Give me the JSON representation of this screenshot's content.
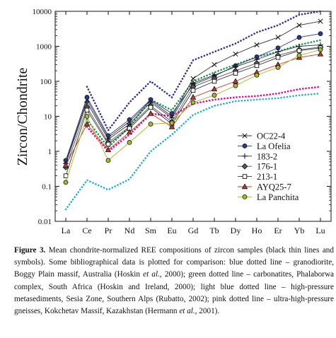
{
  "chart_data": {
    "type": "line",
    "title": "",
    "xlabel": "",
    "ylabel": "Zircon/Chondrite",
    "yscale": "log",
    "ylim": [
      0.01,
      10000
    ],
    "yticks": [
      0.01,
      0.1,
      1,
      10,
      100,
      1000,
      10000
    ],
    "ytick_labels": [
      "0.01",
      "0.1",
      "1",
      "10",
      "100",
      "1000",
      "10000"
    ],
    "categories": [
      "La",
      "Ce",
      "Pr",
      "Nd",
      "Sm",
      "Eu",
      "Gd",
      "Tb",
      "Dy",
      "Ho",
      "Er",
      "Yb",
      "Lu"
    ],
    "grid": false,
    "legend_position": "bottom-right",
    "series": [
      {
        "name": "OC22-4",
        "marker": "x-cross",
        "color": "#333333",
        "values": [
          0.5,
          30,
          2.5,
          7,
          28,
          10,
          120,
          300,
          600,
          1100,
          1800,
          4000,
          5200
        ]
      },
      {
        "name": "La Ofelia",
        "marker": "filled-circle",
        "color": "#2a3a8a",
        "values": [
          0.55,
          35,
          2.8,
          8,
          30,
          12,
          80,
          140,
          280,
          500,
          900,
          1800,
          2300
        ]
      },
      {
        "name": "183-2",
        "marker": "plus",
        "color": "#333333",
        "values": [
          0.45,
          25,
          2.2,
          6,
          25,
          9,
          90,
          150,
          260,
          420,
          700,
          1000,
          1100
        ]
      },
      {
        "name": "176-1",
        "marker": "filled-diamond",
        "color": "#555555",
        "values": [
          0.35,
          18,
          1.8,
          5,
          20,
          7,
          70,
          120,
          200,
          330,
          550,
          800,
          950
        ]
      },
      {
        "name": "213-1",
        "marker": "open-square",
        "color": "#333333",
        "values": [
          0.2,
          15,
          1.6,
          4.5,
          18,
          6,
          55,
          100,
          170,
          280,
          480,
          750,
          900
        ]
      },
      {
        "name": "AYQ25-7",
        "marker": "filled-triangle",
        "color": "#c0392b",
        "values": [
          0.4,
          6,
          1.1,
          3.5,
          12,
          5,
          35,
          60,
          100,
          180,
          300,
          480,
          600
        ]
      },
      {
        "name": "La Panchita",
        "marker": "filled-circle",
        "color": "#a7b92a",
        "values": [
          0.13,
          10,
          0.55,
          1.8,
          6,
          6.5,
          25,
          40,
          75,
          150,
          250,
          550,
          800
        ]
      },
      {
        "name": "",
        "style": "dotted",
        "color": "#2e3192",
        "values": [
          null,
          70,
          4,
          25,
          100,
          35,
          400,
          700,
          1200,
          2500,
          4000,
          8000,
          10000
        ]
      },
      {
        "name": "",
        "style": "dotted",
        "color": "#1a9850",
        "values": [
          null,
          8,
          1.3,
          5,
          30,
          15,
          100,
          180,
          300,
          500,
          700,
          1100,
          1500
        ]
      },
      {
        "name": "",
        "style": "dotted",
        "color": "#29abe2",
        "values": [
          0.022,
          0.15,
          0.08,
          0.16,
          1,
          3,
          11,
          20,
          27,
          30,
          33,
          40,
          45
        ]
      },
      {
        "name": "",
        "style": "dotted",
        "color": "#ec008c",
        "values": [
          null,
          5,
          1,
          3,
          12,
          10,
          23,
          30,
          35,
          38,
          45,
          60,
          70
        ]
      }
    ]
  },
  "caption": {
    "figure_label": "Figure 3.",
    "seg1": " Mean chondrite-normalized REE compositions of zircon samples (black thin lines and symbols). Some bibliographical data is plotted for comparison: blue dotted line – granodiorite, Boggy Plain massif, Australia (Hoskin ",
    "etal1": "et al.",
    "seg2": ", 2000); green dotted line – carbonatites, Phalaborwa complex, South Africa (Hoskin and Ireland, 2000); light blue dotted line – high-pressure metasediments, Sesia Zone, Southern Alps (Rubatto, 2002); pink dotted line – ultra-high-pressure gneisses, Kokchetav Massif, Kazakhstan (Hermann ",
    "etal2": "et al.",
    "seg3": ", 2001)."
  }
}
